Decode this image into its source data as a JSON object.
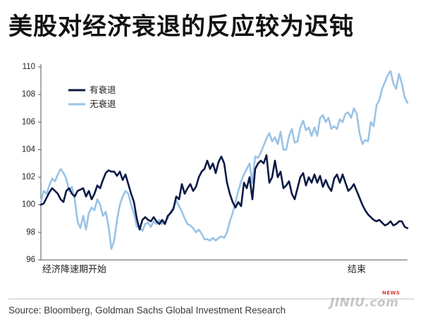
{
  "chart_data": {
    "type": "line",
    "title": "美股对经济衰退的反应较为迟钝",
    "ylim": [
      96,
      110
    ],
    "yticks": [
      96,
      98,
      100,
      102,
      104,
      106,
      108,
      110
    ],
    "x_labels": [
      {
        "text": "经济降速期开始",
        "at": 0
      },
      {
        "text": "结束",
        "at": 112
      }
    ],
    "legend": "top-left",
    "grid": false,
    "series": [
      {
        "name": "有衰退",
        "color": "#0c1a46",
        "values": [
          100.0,
          100.1,
          100.5,
          100.9,
          101.2,
          101.0,
          100.8,
          100.4,
          100.2,
          101.0,
          101.2,
          100.8,
          100.6,
          101.0,
          101.1,
          101.2,
          100.6,
          101.0,
          100.4,
          100.8,
          101.4,
          101.2,
          101.8,
          102.3,
          102.5,
          102.4,
          102.4,
          102.1,
          102.4,
          101.8,
          102.2,
          101.5,
          100.8,
          100.2,
          99.0,
          98.2,
          98.9,
          99.1,
          98.9,
          98.8,
          99.1,
          98.8,
          98.6,
          98.9,
          98.6,
          99.2,
          99.4,
          99.7,
          100.6,
          100.4,
          101.5,
          100.8,
          101.2,
          101.5,
          101.0,
          101.3,
          102.0,
          102.4,
          102.6,
          103.2,
          102.6,
          103.0,
          102.3,
          103.1,
          103.5,
          103.0,
          101.6,
          100.8,
          100.2,
          99.8,
          100.2,
          99.9,
          101.6,
          101.2,
          102.0,
          100.4,
          102.6,
          103.0,
          103.2,
          103.0,
          103.6,
          101.6,
          102.0,
          103.2,
          102.0,
          102.4,
          101.2,
          101.4,
          101.7,
          100.8,
          100.4,
          101.2,
          102.0,
          102.3,
          101.4,
          102.0,
          101.6,
          102.2,
          101.6,
          102.1,
          101.3,
          101.8,
          101.3,
          101.0,
          101.9,
          102.2,
          101.6,
          102.2,
          101.6,
          101.0,
          101.2,
          101.5,
          101.0,
          100.5,
          100.0,
          99.6,
          99.3,
          99.1,
          98.9,
          98.8,
          98.9,
          98.7,
          98.5,
          98.6,
          98.8,
          98.5,
          98.6,
          98.8,
          98.8,
          98.4,
          98.3
        ]
      },
      {
        "name": "无衰退",
        "color": "#9ac3e6",
        "values": [
          100.2,
          101.0,
          100.8,
          101.4,
          101.9,
          101.7,
          102.2,
          102.6,
          102.3,
          101.9,
          101.0,
          101.3,
          100.4,
          98.8,
          98.3,
          99.2,
          98.2,
          99.4,
          99.8,
          99.6,
          100.4,
          100.0,
          99.2,
          99.5,
          98.4,
          96.8,
          97.4,
          98.9,
          100.0,
          100.6,
          101.0,
          100.8,
          100.0,
          99.4,
          98.4,
          98.4,
          98.1,
          98.6,
          98.7,
          98.4,
          98.8,
          98.6,
          98.9,
          98.6,
          98.8,
          99.0,
          99.5,
          99.8,
          100.3,
          99.9,
          99.5,
          99.0,
          98.6,
          98.5,
          98.3,
          98.0,
          98.2,
          97.9,
          97.5,
          97.5,
          97.4,
          97.6,
          97.4,
          97.6,
          97.7,
          97.6,
          98.0,
          98.8,
          99.4,
          100.2,
          101.0,
          101.7,
          102.2,
          102.6,
          103.0,
          101.6,
          103.5,
          103.4,
          103.8,
          104.3,
          104.8,
          105.2,
          104.6,
          104.9,
          104.4,
          105.3,
          104.0,
          104.0,
          105.0,
          105.5,
          104.5,
          104.6,
          105.6,
          106.1,
          105.4,
          105.6,
          105.0,
          105.6,
          105.0,
          106.3,
          106.5,
          106.0,
          106.3,
          105.5,
          105.7,
          105.5,
          106.2,
          106.0,
          106.6,
          106.7,
          106.3,
          107.0,
          106.6,
          105.2,
          104.4,
          104.7,
          104.6,
          106.0,
          105.7,
          107.2,
          107.6,
          108.4,
          108.9,
          109.4,
          109.7,
          108.8,
          108.4,
          109.5,
          108.8,
          107.8,
          107.4
        ]
      }
    ]
  },
  "source": "Source: Bloomberg, Goldman Sachs Global Investment Research",
  "watermark": {
    "text": "JINIU.com",
    "badge": "NEWS"
  }
}
